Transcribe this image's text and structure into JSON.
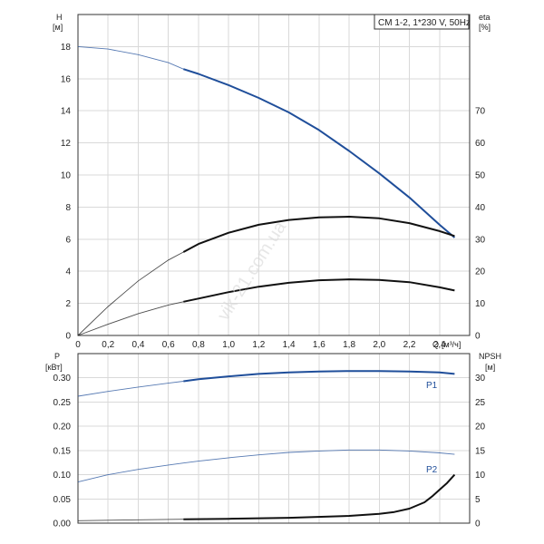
{
  "watermark": "vik-21.com.ua",
  "chart_data": [
    {
      "type": "line",
      "legend": "CM 1-2, 1*230 V, 50Hz",
      "legend_position": "top-right",
      "grid": true,
      "x": {
        "label": "Q",
        "unit": "[м³/ч]",
        "lim": [
          0,
          2.6
        ],
        "ticks": [
          0,
          0.2,
          0.4,
          0.6,
          0.8,
          1.0,
          1.2,
          1.4,
          1.6,
          1.8,
          2.0,
          2.2,
          2.4
        ],
        "tick_labels": [
          "0",
          "0,2",
          "0,4",
          "0,6",
          "0,8",
          "1,0",
          "1,2",
          "1,4",
          "1,6",
          "1,8",
          "2,0",
          "2,2",
          "2,4"
        ]
      },
      "y_left": {
        "label": "H",
        "unit": "[м]",
        "lim": [
          0,
          20
        ],
        "ticks": [
          0,
          2,
          4,
          6,
          8,
          10,
          12,
          14,
          16,
          18
        ]
      },
      "y_right": {
        "label": "eta",
        "unit": "[%]",
        "lim": [
          0,
          100
        ],
        "ticks": [
          0,
          10,
          20,
          30,
          40,
          50,
          60,
          70
        ]
      },
      "series": [
        {
          "axis": "left",
          "color": "#1f4e9a",
          "x": [
            0,
            0.2,
            0.4,
            0.6,
            0.7,
            0.8,
            1.0,
            1.2,
            1.4,
            1.6,
            1.8,
            2.0,
            2.2,
            2.4,
            2.5
          ],
          "y": [
            18.0,
            17.85,
            17.5,
            17.0,
            16.6,
            16.3,
            15.6,
            14.8,
            13.9,
            12.8,
            11.5,
            10.1,
            8.6,
            6.9,
            6.1
          ],
          "thin_until": 0.7
        },
        {
          "axis": "right",
          "color": "#111111",
          "x": [
            0,
            0.2,
            0.4,
            0.6,
            0.7,
            0.8,
            1.0,
            1.2,
            1.4,
            1.6,
            1.8,
            2.0,
            2.2,
            2.4,
            2.5
          ],
          "y": [
            0,
            9,
            17,
            23.5,
            26,
            28.5,
            32,
            34.5,
            36,
            36.8,
            37,
            36.5,
            35,
            32.5,
            31
          ],
          "thin_until": 0.7
        },
        {
          "axis": "right",
          "color": "#111111",
          "x": [
            0,
            0.2,
            0.4,
            0.6,
            0.7,
            0.8,
            1.0,
            1.2,
            1.4,
            1.6,
            1.8,
            2.0,
            2.2,
            2.4,
            2.5
          ],
          "y": [
            0,
            3.5,
            6.8,
            9.5,
            10.5,
            11.5,
            13.5,
            15.2,
            16.4,
            17.2,
            17.5,
            17.3,
            16.6,
            15.0,
            14.0
          ],
          "thin_until": 0.7
        }
      ]
    },
    {
      "type": "line",
      "grid": true,
      "x": {
        "lim": [
          0,
          2.6
        ],
        "ticks": [
          0,
          0.2,
          0.4,
          0.6,
          0.8,
          1.0,
          1.2,
          1.4,
          1.6,
          1.8,
          2.0,
          2.2,
          2.4
        ]
      },
      "y_left": {
        "label": "P",
        "unit": "[кВт]",
        "lim": [
          0,
          0.35
        ],
        "ticks": [
          0,
          0.05,
          0.1,
          0.15,
          0.2,
          0.25,
          0.3
        ],
        "tick_labels": [
          "0.00",
          "0.05",
          "0.10",
          "0.15",
          "0.20",
          "0.25",
          "0.30"
        ]
      },
      "y_right": {
        "label": "NPSH",
        "unit": "[м]",
        "lim": [
          0,
          35
        ],
        "ticks": [
          0,
          5,
          10,
          15,
          20,
          25,
          30
        ]
      },
      "series": [
        {
          "name": "P1",
          "axis": "left",
          "color": "#1f4e9a",
          "x": [
            0,
            0.2,
            0.4,
            0.6,
            0.7,
            0.8,
            1.0,
            1.2,
            1.4,
            1.6,
            1.8,
            2.0,
            2.2,
            2.4,
            2.5
          ],
          "y": [
            0.262,
            0.272,
            0.281,
            0.289,
            0.293,
            0.297,
            0.303,
            0.308,
            0.311,
            0.313,
            0.314,
            0.314,
            0.313,
            0.311,
            0.308
          ],
          "thin_until": 0.7
        },
        {
          "name": "P2",
          "axis": "left",
          "color": "#1f4e9a",
          "x": [
            0,
            0.2,
            0.4,
            0.6,
            0.7,
            0.8,
            1.0,
            1.2,
            1.4,
            1.6,
            1.8,
            2.0,
            2.2,
            2.4,
            2.5
          ],
          "y": [
            0.085,
            0.1,
            0.111,
            0.12,
            0.124,
            0.128,
            0.135,
            0.141,
            0.146,
            0.149,
            0.151,
            0.151,
            0.149,
            0.145,
            0.142
          ],
          "thin_until": 2.6
        },
        {
          "axis": "right",
          "color": "#111111",
          "x": [
            0,
            0.7,
            1.0,
            1.4,
            1.8,
            2.0,
            2.1,
            2.2,
            2.3,
            2.35,
            2.4,
            2.45,
            2.5
          ],
          "y": [
            0.5,
            0.8,
            0.9,
            1.1,
            1.5,
            1.9,
            2.3,
            3.0,
            4.3,
            5.5,
            6.9,
            8.3,
            10.0
          ],
          "thin_until": 0.7
        }
      ]
    }
  ]
}
